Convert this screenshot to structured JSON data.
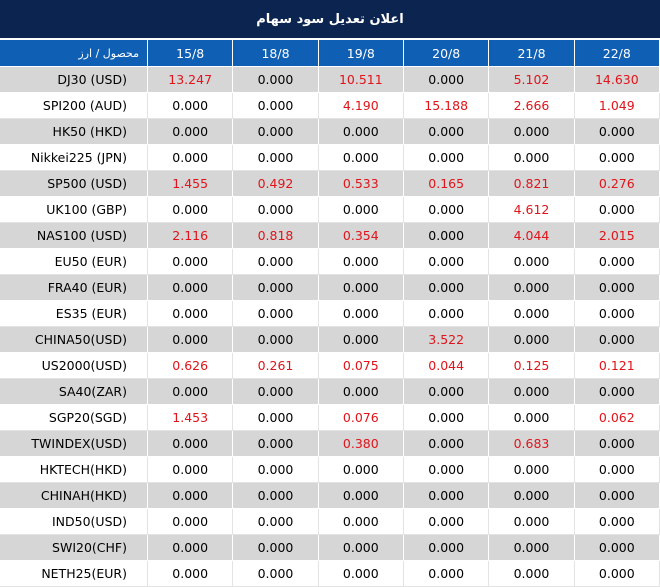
{
  "header": {
    "title": "اعلان تعدیل سود سهام"
  },
  "table": {
    "columns": [
      "محصول / ارز",
      "15/8",
      "18/8",
      "19/8",
      "20/8",
      "21/8",
      "22/8"
    ],
    "rows": [
      [
        "DJ30 (USD)",
        "13.247",
        "0.000",
        "10.511",
        "0.000",
        "5.102",
        "14.630"
      ],
      [
        "SPI200 (AUD)",
        "0.000",
        "0.000",
        "4.190",
        "15.188",
        "2.666",
        "1.049"
      ],
      [
        "HK50 (HKD)",
        "0.000",
        "0.000",
        "0.000",
        "0.000",
        "0.000",
        "0.000"
      ],
      [
        "Nikkei225 (JPN)",
        "0.000",
        "0.000",
        "0.000",
        "0.000",
        "0.000",
        "0.000"
      ],
      [
        "SP500 (USD)",
        "1.455",
        "0.492",
        "0.533",
        "0.165",
        "0.821",
        "0.276"
      ],
      [
        "UK100 (GBP)",
        "0.000",
        "0.000",
        "0.000",
        "0.000",
        "4.612",
        "0.000"
      ],
      [
        "NAS100 (USD)",
        "2.116",
        "0.818",
        "0.354",
        "0.000",
        "4.044",
        "2.015"
      ],
      [
        "EU50 (EUR)",
        "0.000",
        "0.000",
        "0.000",
        "0.000",
        "0.000",
        "0.000"
      ],
      [
        "FRA40 (EUR)",
        "0.000",
        "0.000",
        "0.000",
        "0.000",
        "0.000",
        "0.000"
      ],
      [
        "ES35 (EUR)",
        "0.000",
        "0.000",
        "0.000",
        "0.000",
        "0.000",
        "0.000"
      ],
      [
        "CHINA50(USD)",
        "0.000",
        "0.000",
        "0.000",
        "3.522",
        "0.000",
        "0.000"
      ],
      [
        "US2000(USD)",
        "0.626",
        "0.261",
        "0.075",
        "0.044",
        "0.125",
        "0.121"
      ],
      [
        "SA40(ZAR)",
        "0.000",
        "0.000",
        "0.000",
        "0.000",
        "0.000",
        "0.000"
      ],
      [
        "SGP20(SGD)",
        "1.453",
        "0.000",
        "0.076",
        "0.000",
        "0.000",
        "0.062"
      ],
      [
        "TWINDEX(USD)",
        "0.000",
        "0.000",
        "0.380",
        "0.000",
        "0.683",
        "0.000"
      ],
      [
        "HKTECH(HKD)",
        "0.000",
        "0.000",
        "0.000",
        "0.000",
        "0.000",
        "0.000"
      ],
      [
        "CHINAH(HKD)",
        "0.000",
        "0.000",
        "0.000",
        "0.000",
        "0.000",
        "0.000"
      ],
      [
        "IND50(USD)",
        "0.000",
        "0.000",
        "0.000",
        "0.000",
        "0.000",
        "0.000"
      ],
      [
        "SWI20(CHF)",
        "0.000",
        "0.000",
        "0.000",
        "0.000",
        "0.000",
        "0.000"
      ],
      [
        "NETH25(EUR)",
        "0.000",
        "0.000",
        "0.000",
        "0.000",
        "0.000",
        "0.000"
      ]
    ]
  }
}
